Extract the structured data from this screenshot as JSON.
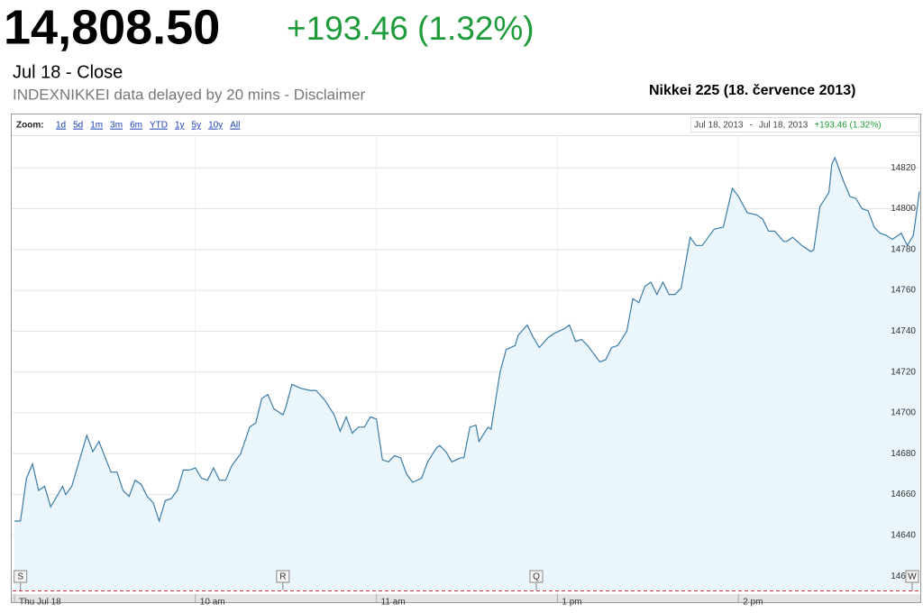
{
  "quote": {
    "price": "14,808.50",
    "change": "+193.46 (1.32%)",
    "close_label": "Jul 18 - Close",
    "delay_note": "INDEXNIKKEI data delayed by 20 mins - Disclaimer"
  },
  "caption": "Nikkei 225 (18. července 2013)",
  "toolbar": {
    "zoom_label": "Zoom:",
    "zoom_options": [
      "1d",
      "5d",
      "1m",
      "3m",
      "6m",
      "YTD",
      "1y",
      "5y",
      "10y",
      "All"
    ],
    "range_start": "Jul 18, 2013",
    "range_sep": "-",
    "range_end": "Jul 18, 2013",
    "range_change": "+193.46 (1.32%)"
  },
  "chart_data": {
    "type": "area",
    "color": "#3c7ca6",
    "fill": "#eaf5fc",
    "grid": true,
    "x": [
      0,
      2,
      4,
      6,
      8,
      10,
      12,
      16,
      17,
      19,
      24,
      26,
      28,
      32,
      34,
      36,
      38,
      40,
      42,
      44,
      46,
      48,
      50,
      52,
      54,
      56,
      58,
      60,
      62,
      64,
      66,
      68,
      70,
      72,
      75,
      78,
      80,
      82,
      84,
      86,
      89,
      90,
      92,
      95,
      98,
      100,
      103,
      106,
      108,
      110,
      112,
      114,
      116,
      118,
      120,
      122,
      124,
      126,
      128,
      130,
      132,
      135,
      137,
      140,
      141,
      143,
      145,
      148,
      149,
      151,
      153,
      154,
      157,
      158,
      161,
      163,
      166,
      167,
      170,
      172,
      174,
      177,
      179,
      182,
      184,
      186,
      188,
      190,
      192,
      194,
      196,
      198,
      200,
      203,
      205,
      207,
      209,
      211,
      213,
      215,
      217,
      219,
      221,
      224,
      226,
      228,
      230,
      232,
      235,
      238,
      240,
      243,
      246,
      248,
      250,
      252,
      255,
      256,
      258,
      261,
      264,
      265,
      267,
      270,
      271,
      272,
      275,
      277,
      279,
      281,
      283,
      285,
      287,
      289,
      291,
      294,
      296,
      298,
      300
    ],
    "series": [
      {
        "name": "Nikkei 225",
        "values": [
          14647,
          14647,
          14668,
          14675,
          14662,
          14664,
          14654,
          14664,
          14660,
          14664,
          14689,
          14681,
          14686,
          14671,
          14671,
          14662,
          14659,
          14667,
          14665,
          14659,
          14656,
          14647,
          14657,
          14658,
          14662,
          14672,
          14672,
          14673,
          14668,
          14667,
          14673,
          14667,
          14667,
          14674,
          14680,
          14693,
          14695,
          14707,
          14709,
          14702,
          14699,
          14703,
          14714,
          14712,
          14711,
          14711,
          14706,
          14699,
          14691,
          14698,
          14690,
          14693,
          14693,
          14698,
          14697,
          14677,
          14676,
          14679,
          14678,
          14670,
          14666,
          14668,
          14676,
          14683,
          14684,
          14681,
          14676,
          14678,
          14678,
          14693,
          14694,
          14686,
          14693,
          14692,
          14720,
          14731,
          14733,
          14738,
          14743,
          14737,
          14732,
          14737,
          14739,
          14741,
          14743,
          14735,
          14736,
          14733,
          14729,
          14725,
          14726,
          14732,
          14733,
          14740,
          14756,
          14754,
          14762,
          14764,
          14758,
          14764,
          14758,
          14758,
          14761,
          14786,
          14782,
          14782,
          14786,
          14790,
          14791,
          14810,
          14806,
          14798,
          14797,
          14795,
          14789,
          14789,
          14784,
          14784,
          14786,
          14782,
          14779,
          14780,
          14801,
          14808,
          14822,
          14825,
          14813,
          14806,
          14805,
          14800,
          14799,
          14791,
          14788,
          14787,
          14785,
          14788,
          14782,
          14787,
          14808.5
        ]
      }
    ],
    "xlim": [
      0,
      300
    ],
    "xticks": [
      {
        "value": 0,
        "label": "Thu Jul 18"
      },
      {
        "value": 60,
        "label": "10 am"
      },
      {
        "value": 120,
        "label": "11 am"
      },
      {
        "value": 180,
        "label": "1 pm"
      },
      {
        "value": 240,
        "label": "2 pm"
      }
    ],
    "ylim": [
      14613,
      14836
    ],
    "yticks": [
      14620,
      14640,
      14660,
      14680,
      14700,
      14720,
      14740,
      14760,
      14780,
      14800,
      14820
    ],
    "flags": [
      {
        "label": "S",
        "x": 2
      },
      {
        "label": "R",
        "x": 89
      },
      {
        "label": "Q",
        "x": 173
      },
      {
        "label": "W",
        "x": 298
      }
    ]
  }
}
